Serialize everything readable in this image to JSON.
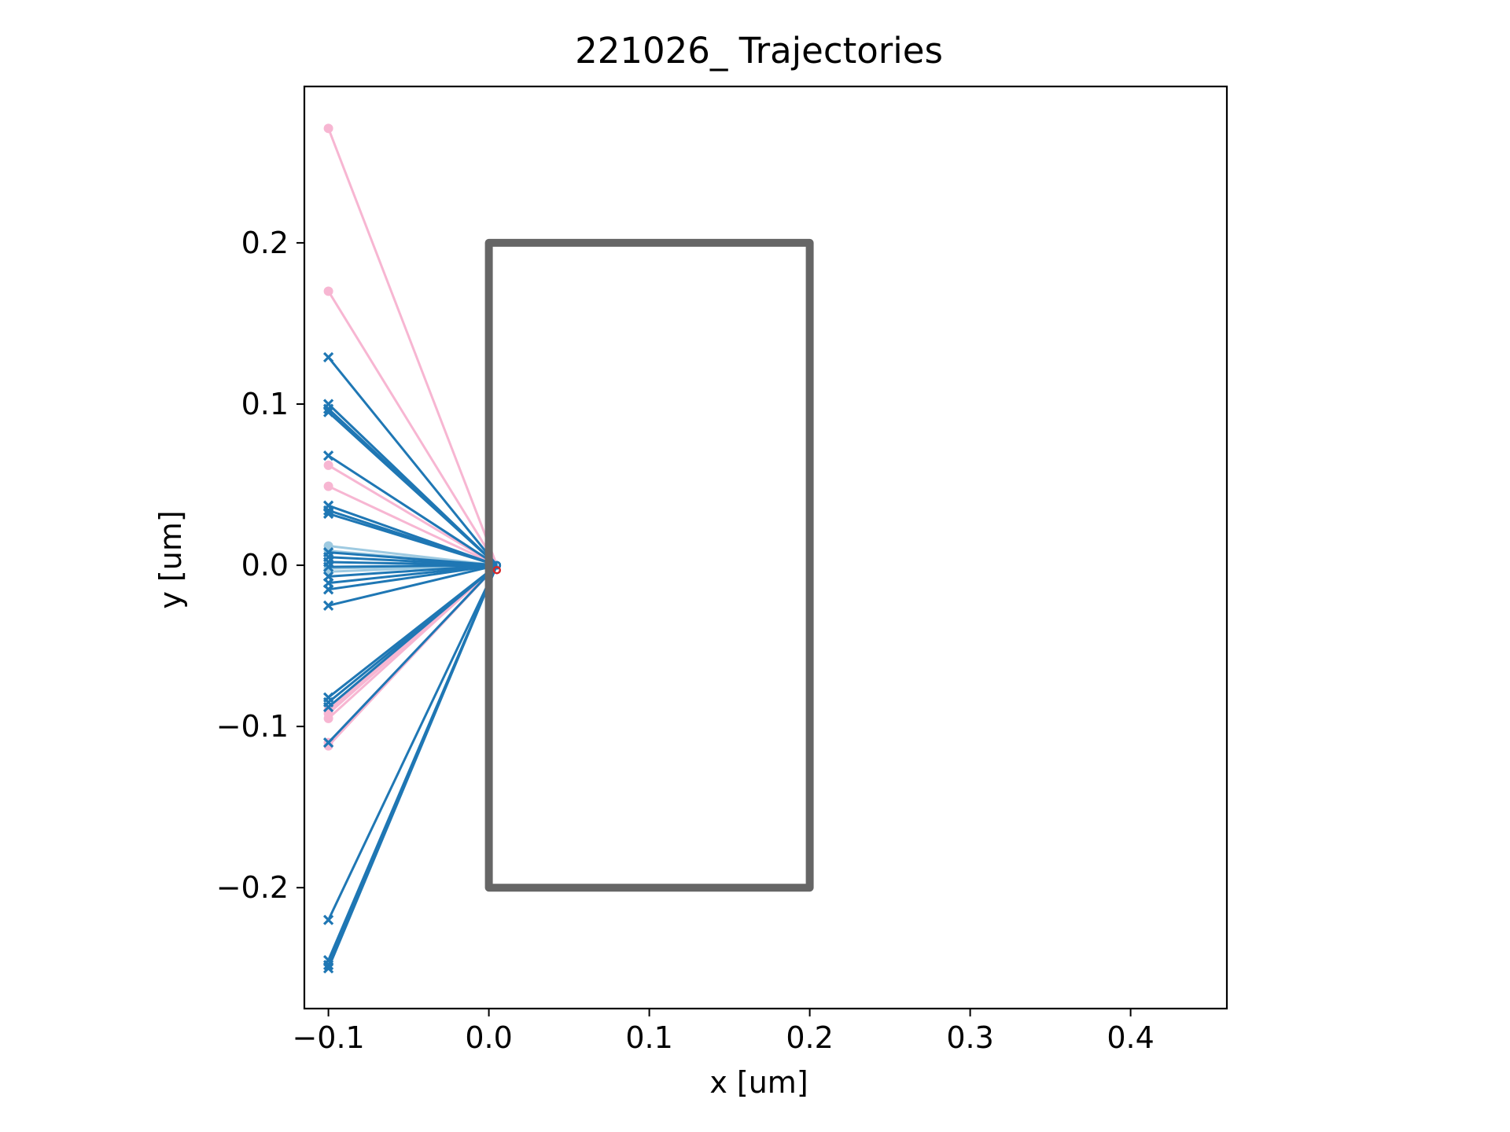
{
  "chart_data": {
    "type": "line",
    "title": "221026_ Trajectories",
    "xlabel": "x [um]",
    "ylabel": "y [um]",
    "xlim": [
      -0.115,
      0.46
    ],
    "ylim": [
      -0.275,
      0.297
    ],
    "xticks": [
      -0.1,
      0.0,
      0.1,
      0.2,
      0.3,
      0.4
    ],
    "xtick_labels": [
      "−0.1",
      "0.0",
      "0.1",
      "0.2",
      "0.3",
      "0.4"
    ],
    "yticks": [
      -0.2,
      -0.1,
      0.0,
      0.1,
      0.2
    ],
    "ytick_labels": [
      "−0.2",
      "−0.1",
      "0.0",
      "0.1",
      "0.2"
    ],
    "grid": false,
    "legend": "none",
    "colors": {
      "blue": "#1f77b4",
      "pink": "#f7b6d2",
      "lightblue": "#9ecae1",
      "red": "#d62728",
      "box": "#666666"
    },
    "rectangle": {
      "x": [
        0.0,
        0.2,
        0.2,
        0.0,
        0.0
      ],
      "y": [
        0.2,
        0.2,
        -0.2,
        -0.2,
        0.2
      ],
      "color": "#666666"
    },
    "series": [
      {
        "color": "#f7b6d2",
        "marker": "dot",
        "start_x": [
          -0.1,
          -0.1,
          -0.1,
          -0.1,
          -0.1,
          -0.1,
          -0.1,
          -0.1,
          -0.1
        ],
        "start_y": [
          0.271,
          0.17,
          0.062,
          0.049,
          -0.09,
          -0.092,
          -0.095,
          -0.11,
          -0.112
        ],
        "end_x": 0.005,
        "end_y": 0.0
      },
      {
        "color": "#9ecae1",
        "marker": "dot",
        "start_x": [
          -0.1,
          -0.1,
          -0.1,
          -0.1
        ],
        "start_y": [
          0.012,
          0.009,
          -0.002,
          -0.004
        ],
        "end_x": 0.005,
        "end_y": 0.0
      },
      {
        "color": "#1f77b4",
        "marker": "x",
        "start_x": [
          -0.1,
          -0.1,
          -0.1,
          -0.1,
          -0.1,
          -0.1,
          -0.1,
          -0.1,
          -0.1,
          -0.1,
          -0.1,
          -0.1,
          -0.1,
          -0.1,
          -0.1,
          -0.1,
          -0.1,
          -0.1,
          -0.1,
          -0.1,
          -0.1,
          -0.1,
          -0.1,
          -0.1
        ],
        "start_y": [
          0.129,
          0.1,
          0.097,
          0.095,
          0.068,
          0.037,
          0.034,
          0.032,
          0.008,
          0.005,
          0.002,
          -0.001,
          -0.007,
          -0.011,
          -0.015,
          -0.025,
          -0.082,
          -0.085,
          -0.088,
          -0.11,
          -0.22,
          -0.245,
          -0.248,
          -0.25
        ],
        "end_x": 0.005,
        "end_y": 0.0
      }
    ]
  }
}
